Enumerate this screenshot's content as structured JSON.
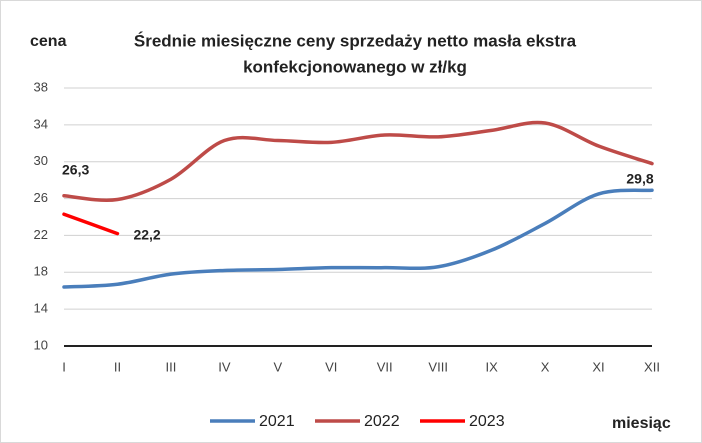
{
  "chart_data": {
    "type": "line",
    "title": [
      "Średnie miesięczne ceny sprzedaży netto masła ekstra",
      "konfekcjonowanego  w zł/kg"
    ],
    "y_label": "cena",
    "x_label": "miesiąc",
    "categories": [
      "I",
      "II",
      "III",
      "IV",
      "V",
      "VI",
      "VII",
      "VIII",
      "IX",
      "X",
      "XI",
      "XII"
    ],
    "series": [
      {
        "name": "2021",
        "color": "#4a7ebb",
        "values": [
          16.4,
          16.7,
          17.8,
          18.2,
          18.3,
          18.5,
          18.5,
          18.6,
          20.4,
          23.3,
          26.5,
          26.9
        ],
        "value_labels": [
          null,
          null,
          null,
          null,
          null,
          null,
          null,
          null,
          null,
          null,
          null,
          null
        ]
      },
      {
        "name": "2022",
        "color": "#be4b48",
        "values": [
          26.3,
          25.9,
          28.1,
          32.3,
          32.3,
          32.1,
          32.9,
          32.7,
          33.4,
          34.2,
          31.7,
          29.8
        ],
        "value_labels": [
          "26,3",
          null,
          null,
          null,
          null,
          null,
          null,
          null,
          null,
          null,
          null,
          "29,8"
        ]
      },
      {
        "name": "2023",
        "color": "#ff0000",
        "values": [
          24.3,
          22.2,
          null,
          null,
          null,
          null,
          null,
          null,
          null,
          null,
          null,
          null
        ],
        "value_labels": [
          null,
          "22,2",
          null,
          null,
          null,
          null,
          null,
          null,
          null,
          null,
          null,
          null
        ]
      }
    ],
    "ylim": [
      10,
      38
    ],
    "yticks": [
      10,
      14,
      18,
      22,
      26,
      30,
      34,
      38
    ],
    "grid": true
  }
}
